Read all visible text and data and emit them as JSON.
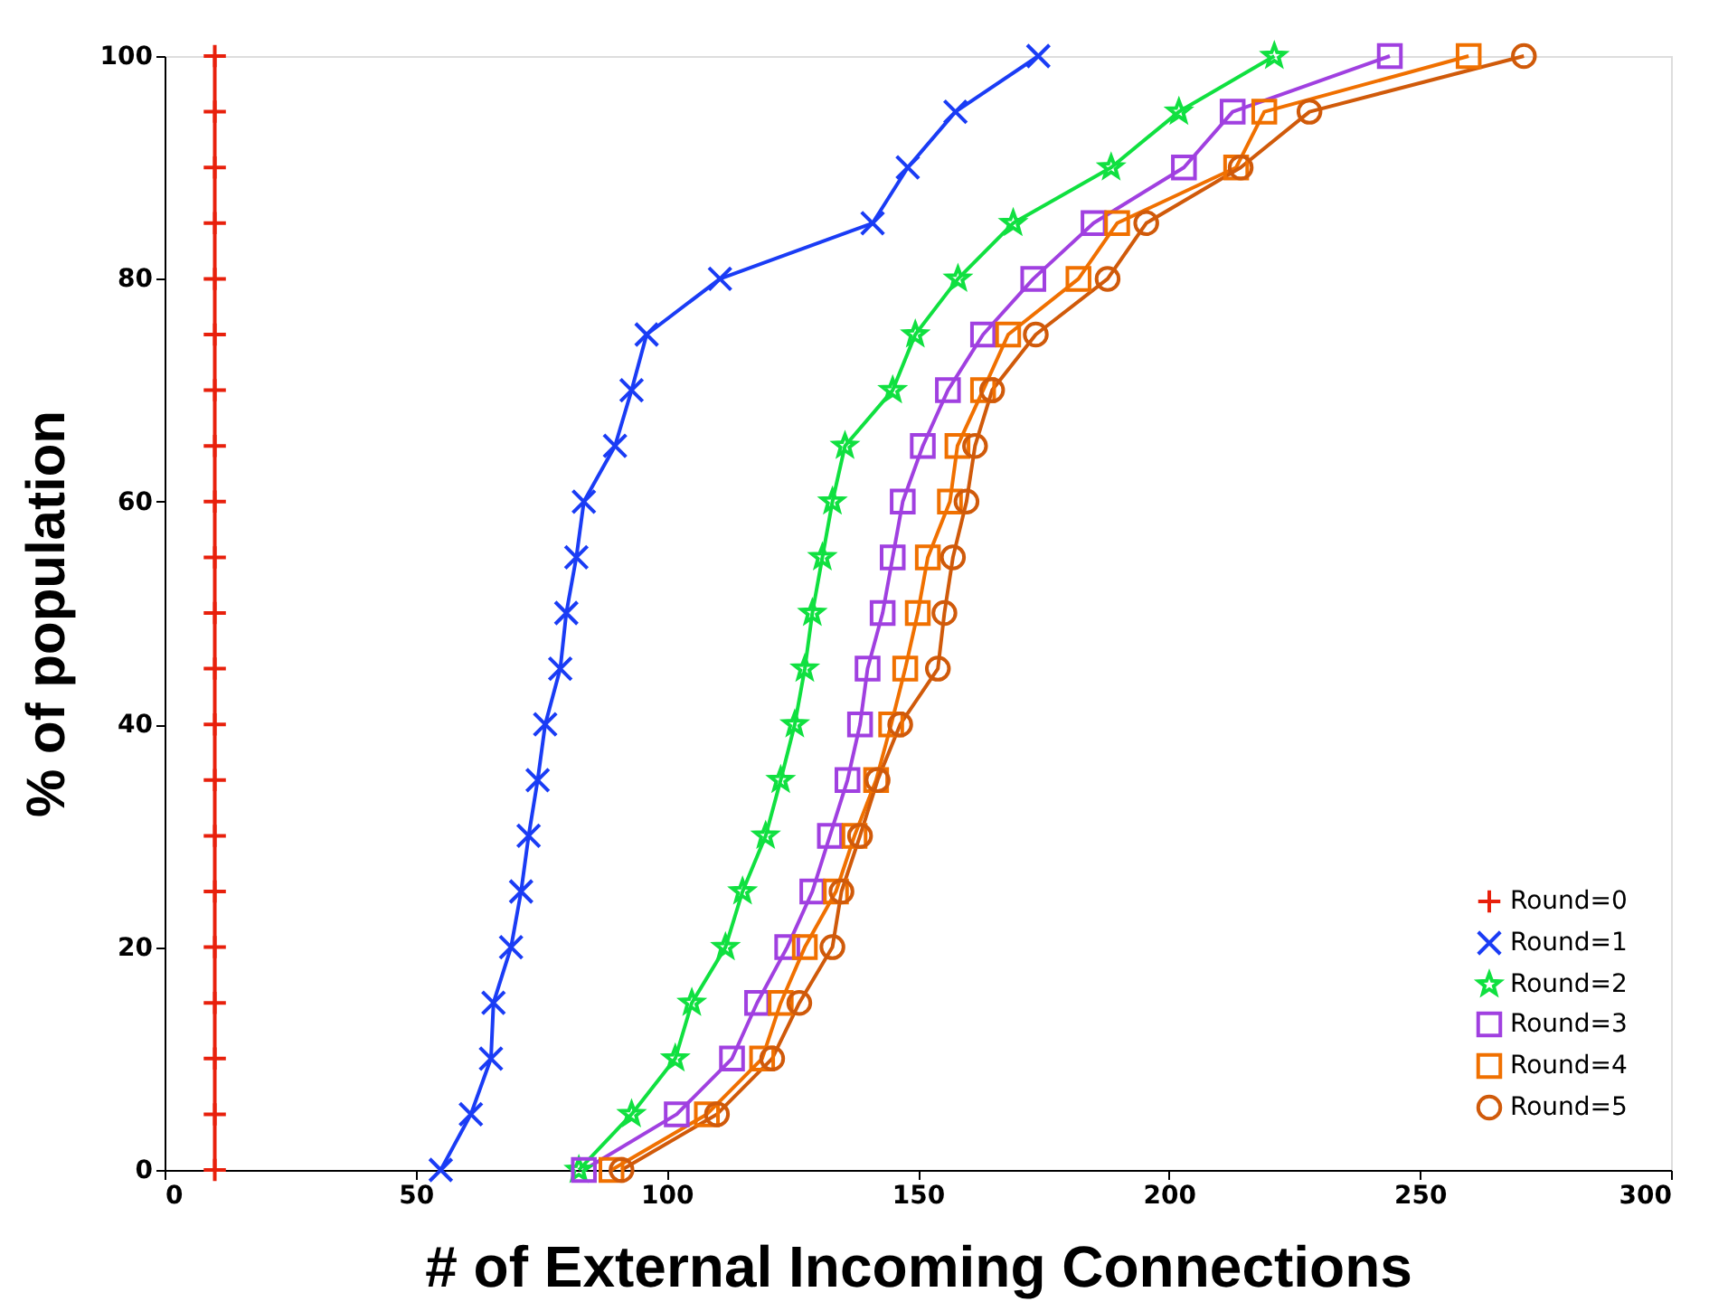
{
  "chart_data": {
    "type": "line",
    "xlabel": "# of External Incoming Connections",
    "ylabel": "% of population",
    "xlim": [
      0,
      300
    ],
    "xticks": [
      0,
      50,
      100,
      150,
      200,
      250,
      300
    ],
    "ylim": [
      0,
      100
    ],
    "yticks": [
      0,
      20,
      40,
      60,
      80,
      100
    ],
    "grid": false,
    "legend": "bottom right",
    "line_style": "solid",
    "series": [
      {
        "name": "Round=0",
        "color": "#e8200c",
        "marker": "plus",
        "x": [
          10,
          10,
          10,
          10,
          10,
          10,
          10,
          10,
          10,
          10,
          10,
          10,
          10,
          10,
          10,
          10,
          10,
          10,
          10,
          10,
          10
        ],
        "values": [
          0,
          5,
          10,
          15,
          20,
          25,
          30,
          35,
          40,
          45,
          50,
          55,
          60,
          65,
          70,
          75,
          80,
          85,
          90,
          95,
          100
        ]
      },
      {
        "name": "Round=1",
        "color": "#1a3cf5",
        "marker": "cross",
        "x": [
          55,
          61,
          65,
          65.5,
          69,
          71,
          72.5,
          74.3,
          75.8,
          78.8,
          80,
          82,
          83.5,
          89.7,
          93,
          96,
          110.6,
          141,
          148,
          157.5,
          174
        ],
        "values": [
          0,
          5,
          10,
          15,
          20,
          25,
          30,
          35,
          40,
          45,
          50,
          55,
          60,
          65,
          70,
          75,
          80,
          85,
          90,
          95,
          100
        ]
      },
      {
        "name": "Round=2",
        "color": "#10e040",
        "marker": "star",
        "x": [
          82.5,
          93,
          101.7,
          105,
          111.7,
          115.1,
          119.7,
          122.7,
          125.5,
          127.5,
          129,
          131,
          133,
          135.5,
          145,
          149.5,
          158,
          169,
          188.5,
          202,
          221
        ],
        "values": [
          0,
          5,
          10,
          15,
          20,
          25,
          30,
          35,
          40,
          45,
          50,
          55,
          60,
          65,
          70,
          75,
          80,
          85,
          90,
          95,
          100
        ]
      },
      {
        "name": "Round=3",
        "color": "#a040e0",
        "marker": "square",
        "x": [
          83.5,
          102,
          113,
          118,
          124,
          129,
          132.5,
          136,
          138.5,
          140,
          143,
          145,
          147,
          151,
          156,
          163,
          173,
          185,
          203,
          212.7,
          244
        ],
        "values": [
          0,
          5,
          10,
          15,
          20,
          25,
          30,
          35,
          40,
          45,
          50,
          55,
          60,
          65,
          70,
          75,
          80,
          85,
          90,
          95,
          100
        ]
      },
      {
        "name": "Round=4",
        "color": "#f07000",
        "marker": "square",
        "x": [
          89,
          108,
          119,
          122.7,
          127.5,
          133.7,
          137.4,
          141.7,
          144.7,
          147.5,
          150,
          152,
          156.4,
          157.9,
          163,
          168,
          182,
          189.7,
          213.4,
          219,
          259.7
        ],
        "values": [
          0,
          5,
          10,
          15,
          20,
          25,
          30,
          35,
          40,
          45,
          50,
          55,
          60,
          65,
          70,
          75,
          80,
          85,
          90,
          95,
          100
        ]
      },
      {
        "name": "Round=5",
        "color": "#d05a0a",
        "marker": "circle",
        "x": [
          91,
          110,
          121,
          126.4,
          133,
          134.8,
          138.5,
          142,
          146.5,
          154,
          155.3,
          157,
          159.7,
          161.4,
          164.8,
          173.5,
          187.8,
          195.5,
          214.3,
          228,
          270.7
        ],
        "values": [
          0,
          5,
          10,
          15,
          20,
          25,
          30,
          35,
          40,
          45,
          50,
          55,
          60,
          65,
          70,
          75,
          80,
          85,
          90,
          95,
          100
        ]
      }
    ]
  }
}
